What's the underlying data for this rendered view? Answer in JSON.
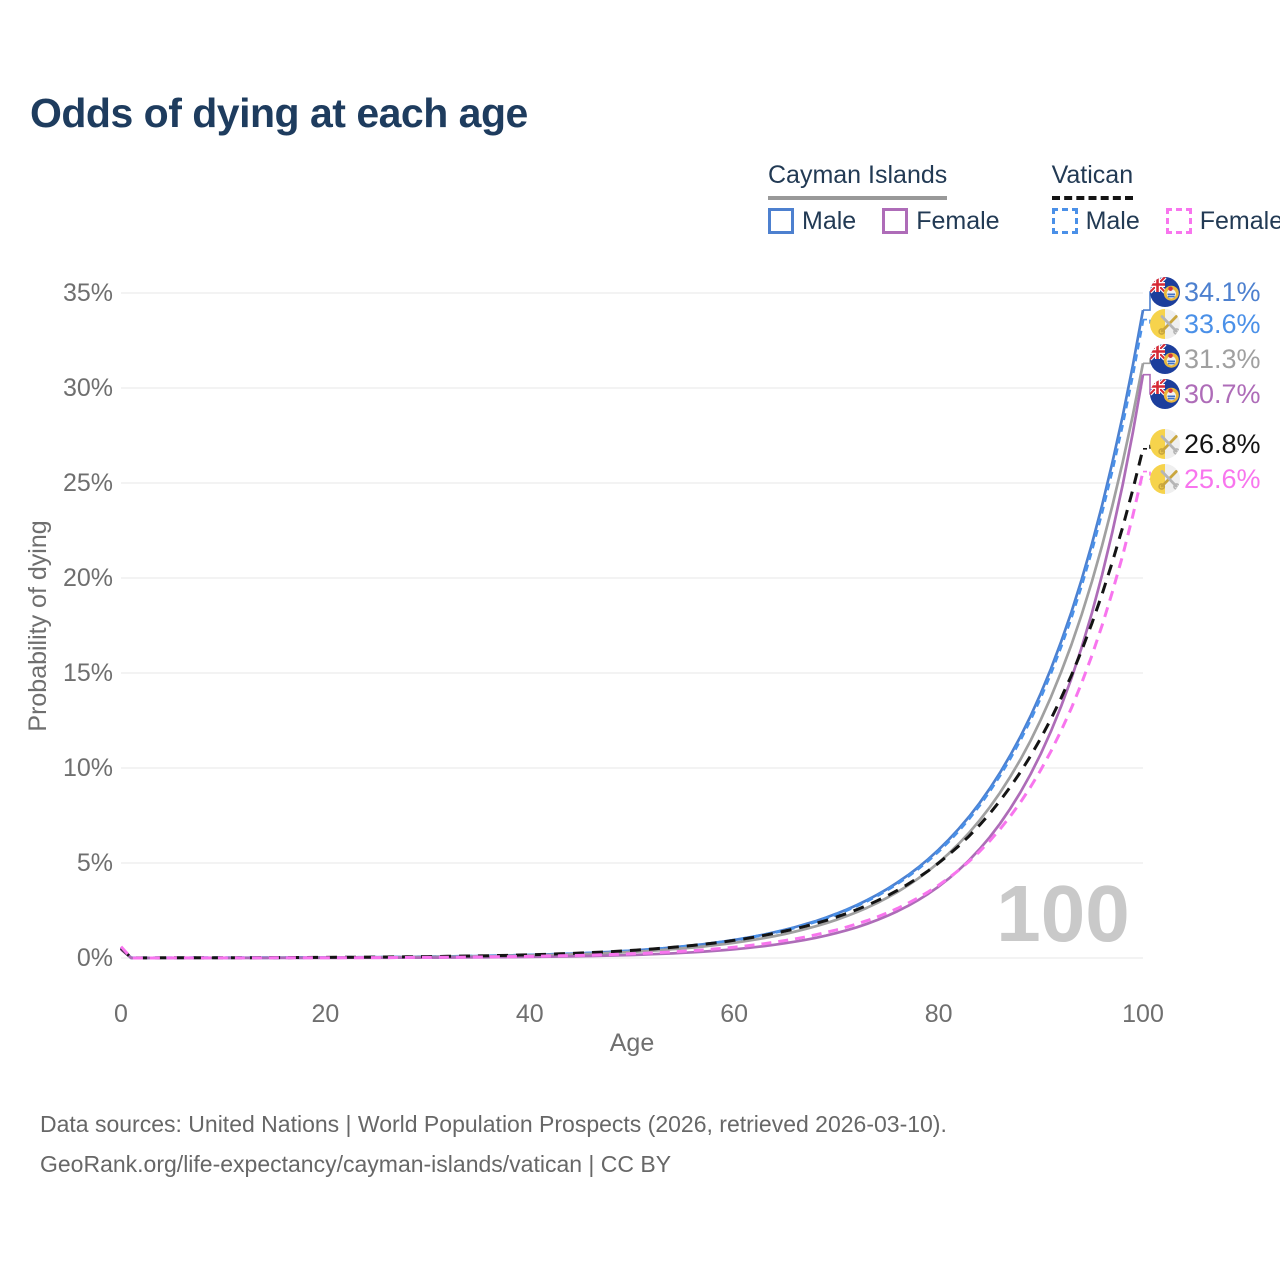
{
  "title": "Odds of dying at each age",
  "legend": {
    "groups": [
      {
        "label": "Cayman Islands",
        "line_style": "solid",
        "line_color": "#999999",
        "items": [
          {
            "label": "Male",
            "color": "#4d80cf",
            "dashed": false
          },
          {
            "label": "Female",
            "color": "#ae6cb8",
            "dashed": false
          }
        ]
      },
      {
        "label": "Vatican",
        "line_style": "dashed",
        "line_color": "#141414",
        "items": [
          {
            "label": "Male",
            "color": "#4a90e8",
            "dashed": true
          },
          {
            "label": "Female",
            "color": "#f875ee",
            "dashed": true
          }
        ]
      }
    ]
  },
  "chart_data": {
    "type": "line",
    "title": "Odds of dying at each age",
    "xlabel": "Age",
    "ylabel": "Probability of dying",
    "x_ticks": [
      0,
      20,
      40,
      60,
      80,
      100
    ],
    "y_ticks_percent": [
      0,
      5,
      10,
      15,
      20,
      25,
      30,
      35
    ],
    "xlim": [
      0,
      100
    ],
    "ylim_percent": [
      0,
      35
    ],
    "grid": "horizontal",
    "legend_position": "top-right",
    "watermark": "100",
    "ages": [
      0,
      1,
      10,
      20,
      30,
      40,
      50,
      60,
      65,
      70,
      75,
      80,
      85,
      90,
      95,
      100
    ],
    "series": [
      {
        "country": "Cayman Islands",
        "sex": "Male",
        "flag": "cayman",
        "color": "#4d80cf",
        "dashed": false,
        "end_value_percent": 34.1,
        "end_label": "34.1%",
        "values_percent": [
          0.55,
          0.005,
          0.011,
          0.027,
          0.065,
          0.16,
          0.39,
          0.95,
          1.49,
          2.33,
          3.64,
          5.7,
          8.91,
          13.93,
          21.79,
          34.1
        ]
      },
      {
        "country": "Vatican",
        "sex": "Male",
        "flag": "vatican",
        "color": "#4a90e8",
        "dashed": true,
        "end_value_percent": 33.6,
        "end_label": "33.6%",
        "values_percent": [
          0.5,
          0.005,
          0.011,
          0.026,
          0.064,
          0.155,
          0.38,
          0.94,
          1.47,
          2.29,
          3.59,
          5.61,
          8.78,
          13.72,
          21.47,
          33.6
        ]
      },
      {
        "country": "Cayman Islands",
        "sex": "All",
        "flag": "cayman",
        "color": "#a0a0a0",
        "dashed": false,
        "end_value_percent": 31.3,
        "end_label": "31.3%",
        "values_percent": [
          0.52,
          0.004,
          0.009,
          0.021,
          0.052,
          0.13,
          0.32,
          0.8,
          1.27,
          2.01,
          3.18,
          5.02,
          7.93,
          12.54,
          19.81,
          31.3
        ]
      },
      {
        "country": "Cayman Islands",
        "sex": "Female",
        "flag": "cayman",
        "color": "#ae6cb8",
        "dashed": false,
        "end_value_percent": 30.7,
        "end_label": "30.7%",
        "values_percent": [
          0.45,
          0.003,
          0.004,
          0.007,
          0.02,
          0.056,
          0.16,
          0.46,
          0.78,
          1.31,
          2.22,
          3.76,
          6.36,
          10.75,
          18.16,
          30.7
        ]
      },
      {
        "country": "Vatican",
        "sex": "All",
        "flag": "vatican",
        "color": "#141414",
        "dashed": true,
        "end_value_percent": 26.8,
        "end_label": "26.8%",
        "values_percent": [
          0.52,
          0.006,
          0.014,
          0.032,
          0.075,
          0.17,
          0.4,
          0.93,
          1.42,
          2.15,
          3.28,
          5.0,
          7.6,
          11.57,
          17.61,
          26.8
        ]
      },
      {
        "country": "Vatican",
        "sex": "Female",
        "flag": "vatican",
        "color": "#f875ee",
        "dashed": true,
        "end_value_percent": 25.6,
        "end_label": "25.6%",
        "values_percent": [
          0.6,
          0.002,
          0.005,
          0.013,
          0.033,
          0.086,
          0.22,
          0.57,
          0.92,
          1.48,
          2.38,
          3.83,
          6.16,
          9.9,
          15.92,
          25.6
        ]
      }
    ]
  },
  "footer": {
    "line1": "Data sources: United Nations | World Population Prospects (2026, retrieved 2026-03-10).",
    "line2": "GeoRank.org/life-expectancy/cayman-islands/vatican | CC BY"
  },
  "colors": {
    "title_text": "#1e3c5e",
    "axis_text": "#6f6f6f",
    "gridline": "#ececec",
    "watermark": "#c9c9c9",
    "footer_text": "#676767"
  }
}
